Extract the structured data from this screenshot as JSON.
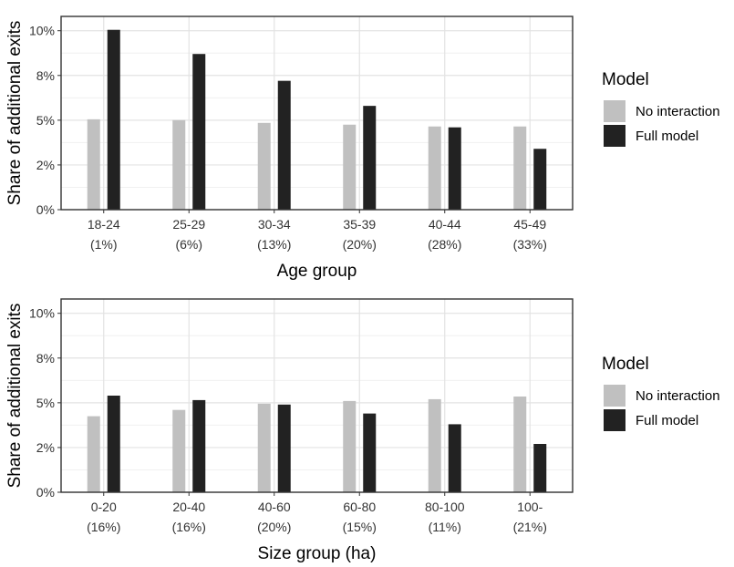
{
  "chart_data": [
    {
      "type": "bar",
      "xlabel": "Age group",
      "ylabel": "Share of additional exits",
      "categories": [
        "18-24",
        "25-29",
        "30-34",
        "35-39",
        "40-44",
        "45-49"
      ],
      "category_sublabels": [
        "(1%)",
        "(6%)",
        "(13%)",
        "(20%)",
        "(28%)",
        "(33%)"
      ],
      "yticks": [
        "0%",
        "2%",
        "5%",
        "8%",
        "10%"
      ],
      "ylim": [
        0,
        10.8
      ],
      "grid": true,
      "legend_title": "Model",
      "legend_position": "right",
      "series": [
        {
          "name": "No interaction",
          "color": "#c0c0c0",
          "values": [
            5.05,
            5.0,
            4.85,
            4.75,
            4.65,
            4.65
          ]
        },
        {
          "name": "Full model",
          "color": "#222222",
          "values": [
            10.05,
            8.7,
            7.2,
            5.8,
            4.6,
            3.4
          ]
        }
      ]
    },
    {
      "type": "bar",
      "xlabel": "Size group (ha)",
      "ylabel": "Share of additional exits",
      "categories": [
        "0-20",
        "20-40",
        "40-60",
        "60-80",
        "80-100",
        "100-"
      ],
      "category_sublabels": [
        "(16%)",
        "(16%)",
        "(20%)",
        "(15%)",
        "(11%)",
        "(21%)"
      ],
      "yticks": [
        "0%",
        "2%",
        "5%",
        "8%",
        "10%"
      ],
      "ylim": [
        0,
        10.8
      ],
      "grid": true,
      "legend_title": "Model",
      "legend_position": "right",
      "series": [
        {
          "name": "No interaction",
          "color": "#c0c0c0",
          "values": [
            4.25,
            4.6,
            4.95,
            5.1,
            5.2,
            5.35
          ]
        },
        {
          "name": "Full model",
          "color": "#222222",
          "values": [
            5.4,
            5.15,
            4.9,
            4.4,
            3.8,
            2.7
          ]
        }
      ]
    }
  ]
}
